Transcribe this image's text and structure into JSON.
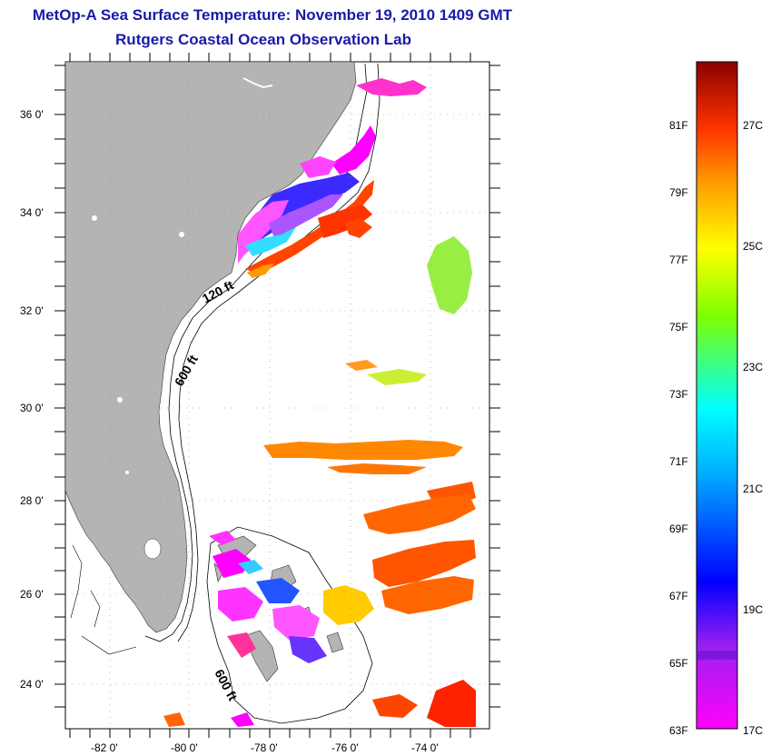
{
  "title": "MetOp-A Sea Surface Temperature:  November 19, 2010 1409 GMT",
  "subtitle": "Rutgers Coastal Ocean Observation Lab",
  "map": {
    "lat_labels": [
      "36 0'",
      "34 0'",
      "32 0'",
      "30 0'",
      "28 0'",
      "26 0'",
      "24 0'"
    ],
    "lon_labels": [
      "-82 0'",
      "-80 0'",
      "-78 0'",
      "-76 0'",
      "-74 0'"
    ],
    "contour_labels": [
      "120 ft",
      "600 ft",
      "600 ft"
    ],
    "land_color": "#b4b4b4"
  },
  "colorbar": {
    "fahrenheit_labels": [
      "81F",
      "79F",
      "77F",
      "75F",
      "73F",
      "71F",
      "69F",
      "67F",
      "65F",
      "63F"
    ],
    "celsius_labels": [
      "27C",
      "25C",
      "23C",
      "21C",
      "19C",
      "17C"
    ]
  }
}
